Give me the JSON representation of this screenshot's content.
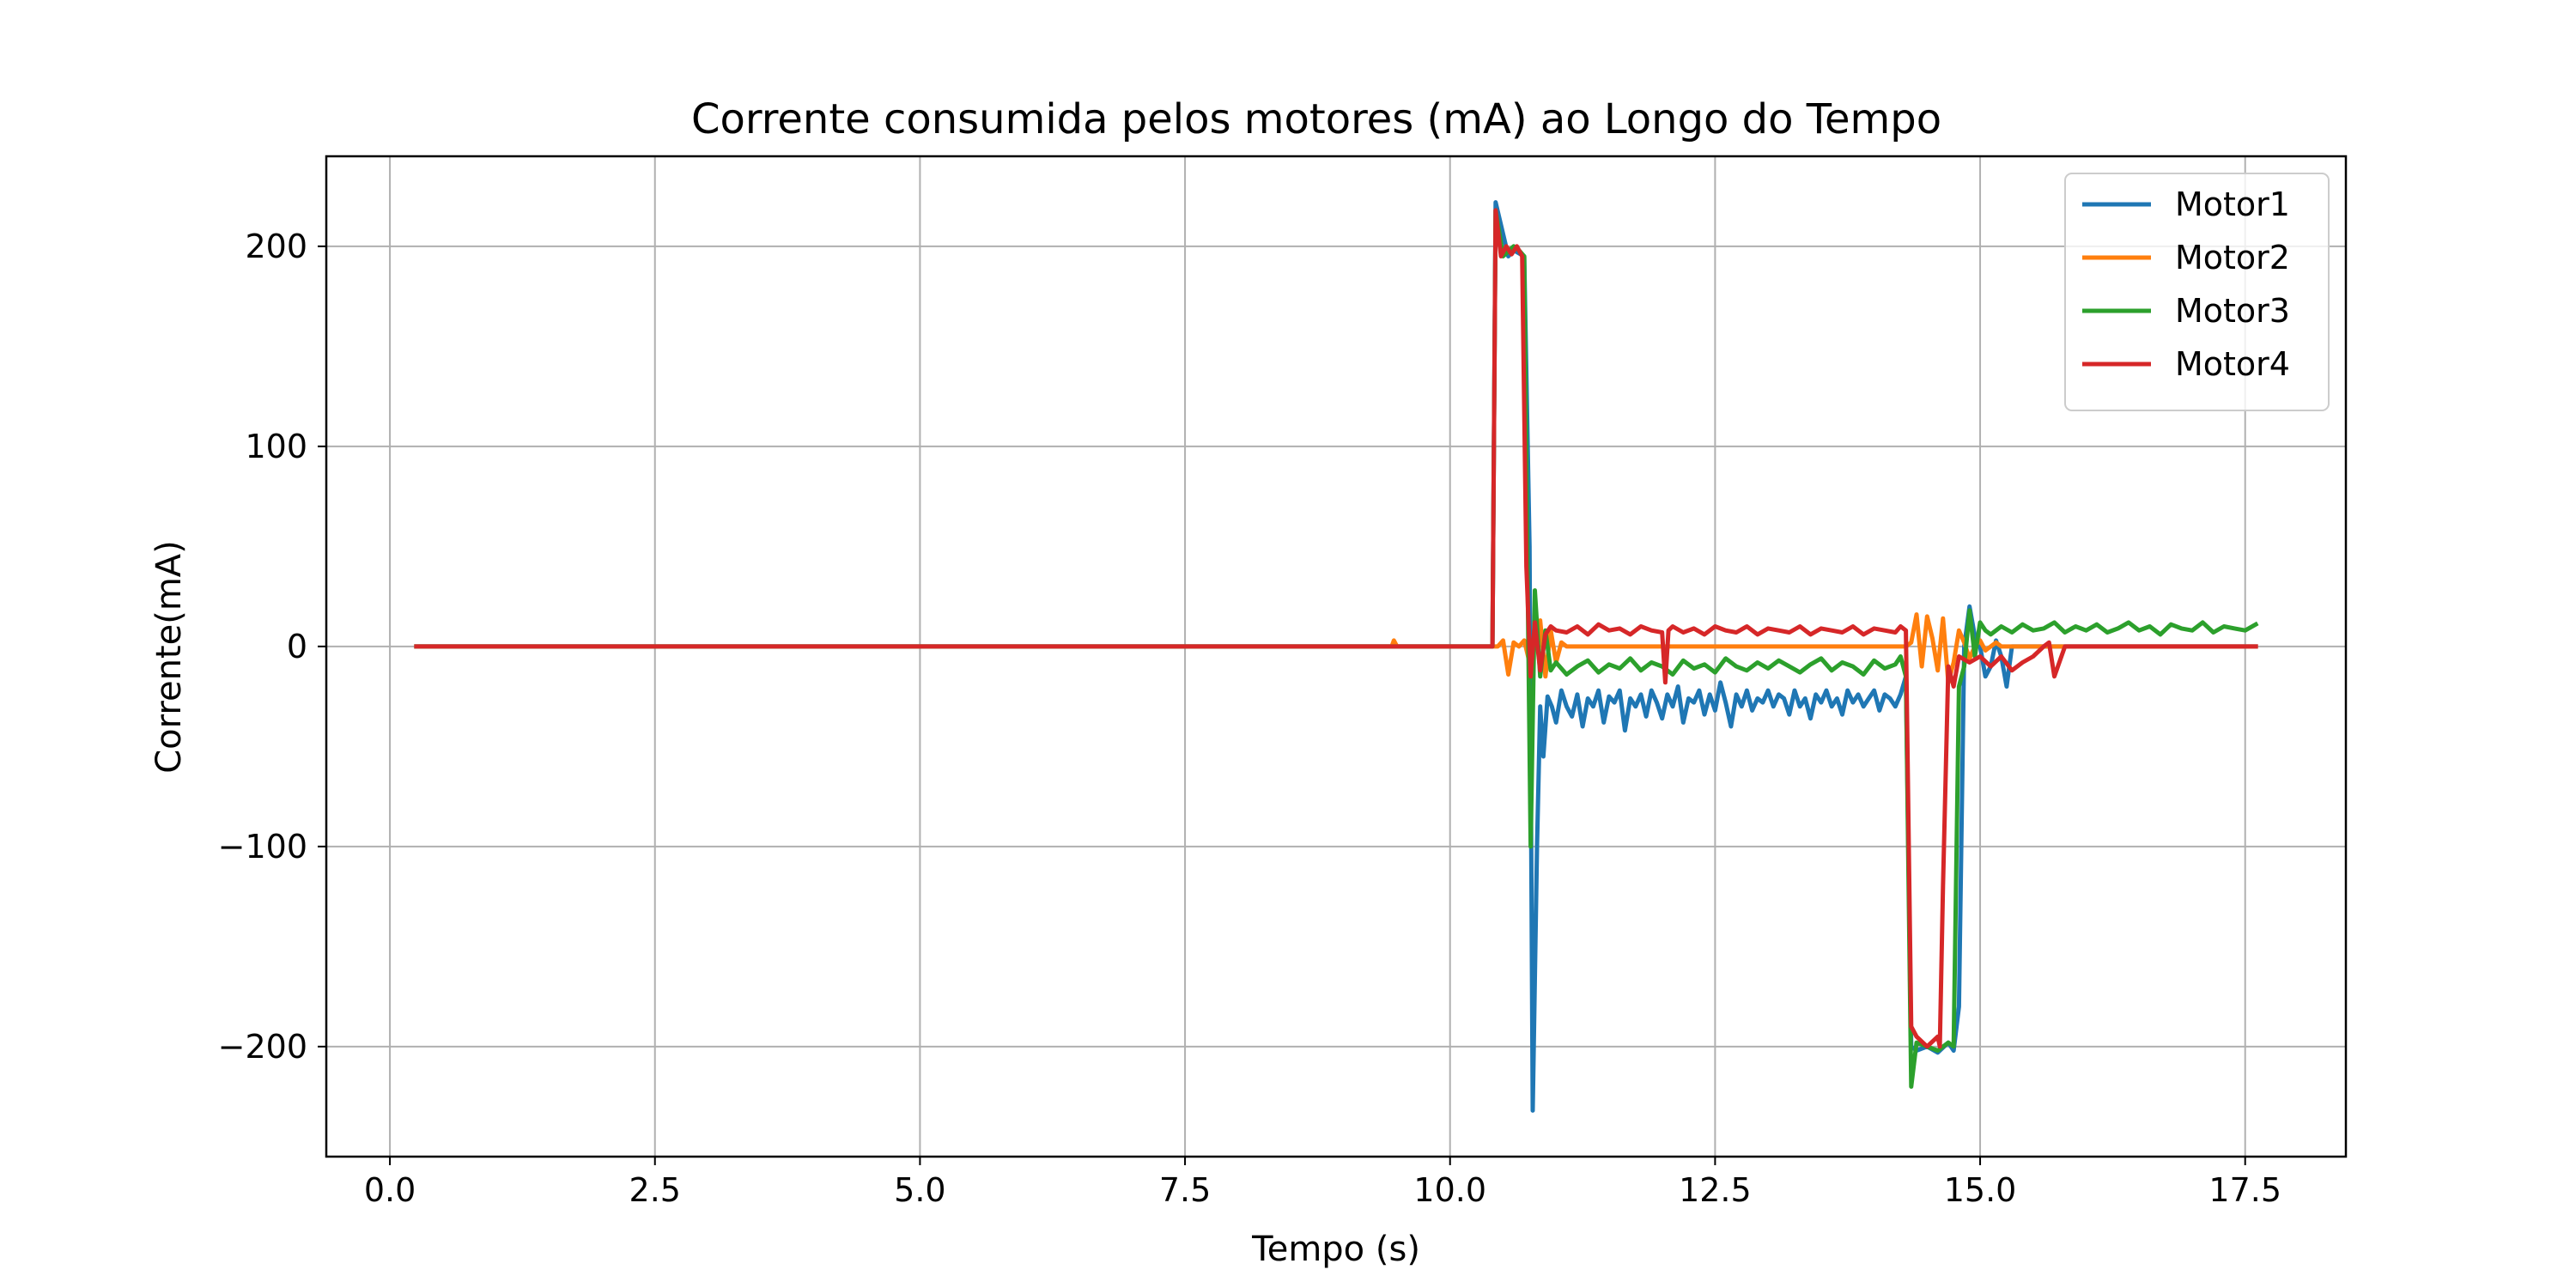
{
  "chart_data": {
    "type": "line",
    "title": "Corrente consumida pelos motores (mA) ao Longo do Tempo",
    "xlabel": "Tempo (s)",
    "ylabel": "Corrente(mA)",
    "xlim": [
      -0.6,
      18.45
    ],
    "ylim": [
      -255,
      245
    ],
    "xticks": [
      0.0,
      2.5,
      5.0,
      7.5,
      10.0,
      12.5,
      15.0,
      17.5
    ],
    "xtick_labels": [
      "0.0",
      "2.5",
      "5.0",
      "7.5",
      "10.0",
      "12.5",
      "15.0",
      "17.5"
    ],
    "yticks": [
      -200,
      -100,
      0,
      100,
      200
    ],
    "ytick_labels": [
      "−200",
      "−100",
      "0",
      "100",
      "200"
    ],
    "grid": true,
    "legend_position": "top-right",
    "series": [
      {
        "name": "Motor1",
        "color": "#1f77b4",
        "x": [
          0.25,
          10.4,
          10.43,
          10.55,
          10.6,
          10.7,
          10.75,
          10.78,
          10.82,
          10.85,
          10.88,
          10.92,
          10.96,
          11.0,
          11.05,
          11.1,
          11.15,
          11.2,
          11.25,
          11.3,
          11.35,
          11.4,
          11.45,
          11.5,
          11.55,
          11.6,
          11.65,
          11.7,
          11.75,
          11.8,
          11.85,
          11.9,
          11.95,
          12.0,
          12.05,
          12.1,
          12.15,
          12.2,
          12.25,
          12.3,
          12.35,
          12.4,
          12.45,
          12.5,
          12.55,
          12.6,
          12.65,
          12.7,
          12.75,
          12.8,
          12.85,
          12.9,
          12.95,
          13.0,
          13.05,
          13.1,
          13.15,
          13.2,
          13.25,
          13.3,
          13.35,
          13.4,
          13.45,
          13.5,
          13.55,
          13.6,
          13.65,
          13.7,
          13.75,
          13.8,
          13.85,
          13.9,
          13.95,
          14.0,
          14.05,
          14.1,
          14.15,
          14.2,
          14.25,
          14.3,
          14.35,
          14.4,
          14.5,
          14.6,
          14.7,
          14.75,
          14.8,
          14.85,
          14.9,
          14.95,
          15.0,
          15.05,
          15.1,
          15.15,
          15.2,
          15.25,
          15.3,
          15.4,
          15.5,
          15.6,
          15.7,
          15.8,
          15.9,
          16.0,
          16.5,
          17.0,
          17.6
        ],
        "y": [
          0,
          0,
          222,
          195,
          198,
          195,
          50,
          -232,
          -100,
          -30,
          -55,
          -25,
          -30,
          -38,
          -22,
          -30,
          -35,
          -24,
          -40,
          -26,
          -30,
          -22,
          -38,
          -25,
          -28,
          -22,
          -42,
          -26,
          -30,
          -24,
          -35,
          -22,
          -28,
          -36,
          -24,
          -30,
          -20,
          -38,
          -26,
          -28,
          -22,
          -34,
          -24,
          -32,
          -18,
          -28,
          -40,
          -24,
          -30,
          -22,
          -32,
          -26,
          -28,
          -22,
          -30,
          -24,
          -26,
          -34,
          -22,
          -30,
          -26,
          -36,
          -24,
          -28,
          -22,
          -30,
          -26,
          -34,
          -22,
          -28,
          -24,
          -30,
          -26,
          -22,
          -32,
          -24,
          -26,
          -30,
          -24,
          -15,
          -200,
          -202,
          -200,
          -203,
          -198,
          -202,
          -180,
          0,
          20,
          5,
          0,
          -15,
          -10,
          3,
          -5,
          -20,
          0,
          0,
          0,
          0,
          0,
          0,
          0,
          0,
          0,
          0,
          0
        ]
      },
      {
        "name": "Motor2",
        "color": "#ff7f0e",
        "x": [
          0.25,
          9.45,
          9.47,
          9.5,
          10.4,
          10.45,
          10.5,
          10.55,
          10.6,
          10.65,
          10.7,
          10.75,
          10.8,
          10.85,
          10.9,
          10.95,
          11.0,
          11.05,
          11.1,
          11.5,
          12.0,
          12.5,
          13.0,
          13.5,
          14.0,
          14.3,
          14.35,
          14.4,
          14.45,
          14.5,
          14.55,
          14.6,
          14.65,
          14.7,
          14.75,
          14.8,
          14.85,
          14.9,
          14.95,
          15.0,
          15.05,
          15.1,
          15.15,
          15.2,
          15.3,
          15.5,
          16.0,
          16.5,
          17.0,
          17.6
        ],
        "y": [
          0,
          0,
          3,
          0,
          0,
          0,
          3,
          -14,
          2,
          0,
          3,
          -8,
          2,
          13,
          -15,
          8,
          -8,
          2,
          0,
          0,
          0,
          0,
          0,
          0,
          0,
          0,
          2,
          16,
          -10,
          15,
          4,
          -12,
          14,
          -18,
          -8,
          8,
          2,
          -6,
          0,
          3,
          -2,
          0,
          2,
          0,
          0,
          0,
          0,
          0,
          0,
          0
        ]
      },
      {
        "name": "Motor3",
        "color": "#2ca02c",
        "x": [
          0.25,
          10.4,
          10.43,
          10.5,
          10.6,
          10.65,
          10.7,
          10.73,
          10.76,
          10.8,
          10.85,
          10.9,
          10.95,
          11.0,
          11.1,
          11.2,
          11.3,
          11.4,
          11.5,
          11.6,
          11.7,
          11.8,
          11.9,
          12.0,
          12.1,
          12.2,
          12.3,
          12.4,
          12.5,
          12.6,
          12.7,
          12.8,
          12.9,
          13.0,
          13.1,
          13.2,
          13.3,
          13.4,
          13.5,
          13.6,
          13.7,
          13.8,
          13.9,
          14.0,
          14.1,
          14.2,
          14.25,
          14.3,
          14.35,
          14.4,
          14.5,
          14.6,
          14.7,
          14.75,
          14.8,
          14.85,
          14.9,
          14.95,
          15.0,
          15.05,
          15.1,
          15.2,
          15.3,
          15.4,
          15.5,
          15.6,
          15.7,
          15.8,
          15.9,
          16.0,
          16.1,
          16.2,
          16.3,
          16.4,
          16.5,
          16.6,
          16.7,
          16.8,
          16.9,
          17.0,
          17.1,
          17.2,
          17.3,
          17.4,
          17.5,
          17.6
        ],
        "y": [
          0,
          0,
          218,
          195,
          200,
          198,
          195,
          40,
          -100,
          28,
          -15,
          8,
          -12,
          -8,
          -14,
          -10,
          -7,
          -13,
          -9,
          -11,
          -6,
          -12,
          -8,
          -10,
          -14,
          -7,
          -11,
          -9,
          -13,
          -6,
          -10,
          -12,
          -8,
          -11,
          -7,
          -10,
          -13,
          -9,
          -6,
          -12,
          -8,
          -10,
          -14,
          -7,
          -11,
          -9,
          -5,
          -15,
          -220,
          -198,
          -200,
          -202,
          -198,
          -200,
          -20,
          -10,
          18,
          -5,
          12,
          8,
          6,
          10,
          7,
          11,
          8,
          9,
          12,
          7,
          10,
          8,
          11,
          7,
          9,
          12,
          8,
          10,
          6,
          11,
          9,
          8,
          12,
          7,
          10,
          9,
          8,
          11
        ]
      },
      {
        "name": "Motor4",
        "color": "#d62728",
        "x": [
          0.25,
          10.4,
          10.43,
          10.48,
          10.53,
          10.58,
          10.63,
          10.68,
          10.72,
          10.76,
          10.8,
          10.85,
          10.9,
          10.95,
          11.0,
          11.1,
          11.2,
          11.3,
          11.4,
          11.5,
          11.6,
          11.7,
          11.8,
          11.9,
          12.0,
          12.03,
          12.06,
          12.1,
          12.2,
          12.3,
          12.4,
          12.5,
          12.6,
          12.7,
          12.8,
          12.9,
          13.0,
          13.1,
          13.2,
          13.3,
          13.4,
          13.5,
          13.6,
          13.7,
          13.8,
          13.9,
          14.0,
          14.1,
          14.2,
          14.25,
          14.3,
          14.35,
          14.4,
          14.5,
          14.6,
          14.62,
          14.65,
          14.7,
          14.75,
          14.8,
          14.9,
          15.0,
          15.1,
          15.2,
          15.3,
          15.4,
          15.5,
          15.6,
          15.65,
          15.7,
          15.8,
          15.9,
          16.0,
          16.1,
          16.2,
          16.3,
          16.5,
          17.0,
          17.6
        ],
        "y": [
          0,
          0,
          218,
          195,
          200,
          196,
          200,
          195,
          40,
          -15,
          12,
          -12,
          6,
          10,
          8,
          7,
          10,
          6,
          11,
          8,
          9,
          6,
          10,
          8,
          7,
          -18,
          8,
          10,
          7,
          9,
          6,
          10,
          8,
          7,
          10,
          6,
          9,
          8,
          7,
          10,
          6,
          9,
          8,
          7,
          10,
          6,
          9,
          8,
          7,
          10,
          8,
          -190,
          -195,
          -200,
          -195,
          -200,
          -120,
          -10,
          -20,
          -5,
          -8,
          -5,
          -10,
          -5,
          -12,
          -8,
          -5,
          0,
          2,
          -15,
          0,
          0,
          0,
          0,
          0,
          0,
          0,
          0,
          0
        ]
      }
    ]
  }
}
